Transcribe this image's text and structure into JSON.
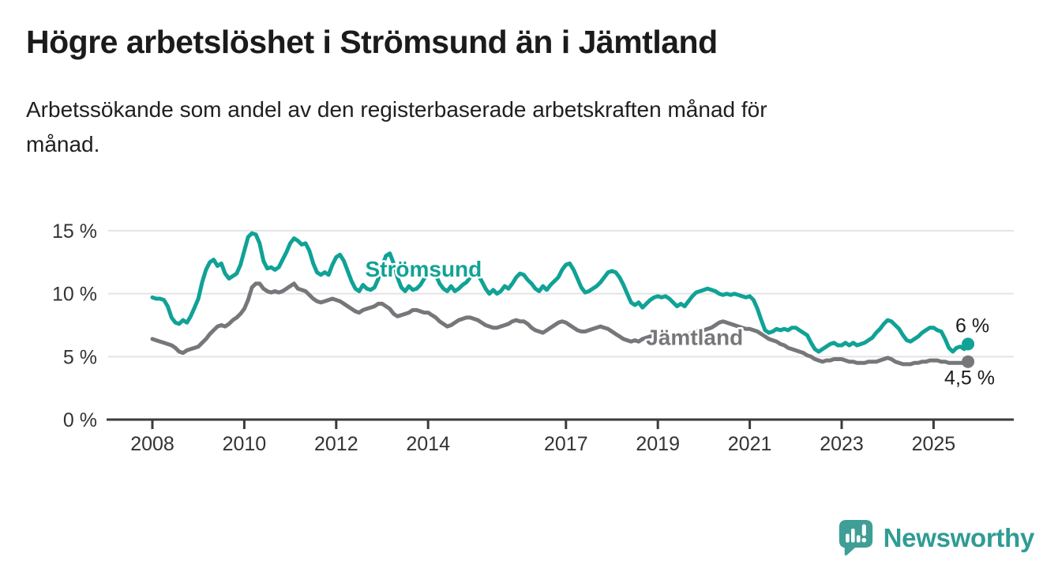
{
  "chart_data": {
    "type": "line",
    "title": "Högre arbetslöshet i Strömsund än i Jämtland",
    "subtitle": "Arbetssökande som andel av den registerbaserade arbetskraften månad för månad.",
    "subtitle_lines": [
      "Arbetssökande som andel av den registerbaserade arbetskraften månad för",
      "månad."
    ],
    "unit": "%",
    "grid": "horizontal",
    "legend_position": "inline",
    "x_start": 2008,
    "x_step": "month",
    "x_end_approx": 2025.75,
    "ylim": [
      0,
      15
    ],
    "ygrid_values": [
      5,
      10,
      15
    ],
    "yticks": [
      {
        "value": 15,
        "label": "15 %"
      },
      {
        "value": 10,
        "label": "10 %"
      },
      {
        "value": 5,
        "label": "5 %"
      },
      {
        "value": 0,
        "label": "0 %"
      }
    ],
    "xticks": [
      {
        "x": 2008,
        "label": "2008"
      },
      {
        "x": 2010,
        "label": "2010"
      },
      {
        "x": 2012,
        "label": "2012"
      },
      {
        "x": 2014,
        "label": "2014"
      },
      {
        "x": 2017,
        "label": "2017"
      },
      {
        "x": 2019,
        "label": "2019"
      },
      {
        "x": 2021,
        "label": "2021"
      },
      {
        "x": 2023,
        "label": "2023"
      },
      {
        "x": 2025,
        "label": "2025"
      }
    ],
    "series": [
      {
        "name": "Jämtland",
        "color": "#77777b",
        "end_label": "4,5 %",
        "label_at": {
          "x": 2019.8,
          "y": 6.55
        },
        "values": [
          6.4,
          6.3,
          6.2,
          6.1,
          6.0,
          5.9,
          5.7,
          5.4,
          5.3,
          5.5,
          5.6,
          5.7,
          5.8,
          6.1,
          6.4,
          6.8,
          7.1,
          7.4,
          7.5,
          7.4,
          7.6,
          7.9,
          8.1,
          8.4,
          8.8,
          9.5,
          10.5,
          10.8,
          10.8,
          10.4,
          10.2,
          10.1,
          10.2,
          10.1,
          10.2,
          10.4,
          10.6,
          10.8,
          10.4,
          10.3,
          10.2,
          9.9,
          9.6,
          9.4,
          9.3,
          9.4,
          9.5,
          9.6,
          9.5,
          9.4,
          9.2,
          9.0,
          8.8,
          8.6,
          8.5,
          8.7,
          8.8,
          8.9,
          9.0,
          9.2,
          9.2,
          9.0,
          8.8,
          8.4,
          8.2,
          8.3,
          8.4,
          8.5,
          8.7,
          8.7,
          8.6,
          8.5,
          8.5,
          8.3,
          8.1,
          7.8,
          7.6,
          7.4,
          7.5,
          7.7,
          7.9,
          8.0,
          8.1,
          8.1,
          8.0,
          7.9,
          7.7,
          7.5,
          7.4,
          7.3,
          7.3,
          7.4,
          7.5,
          7.6,
          7.8,
          7.9,
          7.8,
          7.8,
          7.6,
          7.3,
          7.1,
          7.0,
          6.9,
          7.1,
          7.3,
          7.5,
          7.7,
          7.8,
          7.7,
          7.5,
          7.3,
          7.1,
          7.0,
          7.0,
          7.1,
          7.2,
          7.3,
          7.4,
          7.3,
          7.2,
          7.0,
          6.8,
          6.6,
          6.4,
          6.3,
          6.2,
          6.3,
          6.2,
          6.4,
          6.5,
          6.6,
          6.7,
          6.8,
          6.7,
          6.6,
          6.5,
          6.4,
          6.5,
          6.6,
          6.7,
          6.8,
          6.9,
          7.0,
          7.1,
          7.1,
          7.2,
          7.3,
          7.5,
          7.7,
          7.8,
          7.7,
          7.6,
          7.5,
          7.4,
          7.3,
          7.2,
          7.2,
          7.1,
          7.0,
          6.8,
          6.6,
          6.4,
          6.3,
          6.2,
          6.0,
          5.9,
          5.7,
          5.6,
          5.5,
          5.4,
          5.3,
          5.1,
          5.0,
          4.8,
          4.7,
          4.6,
          4.7,
          4.7,
          4.8,
          4.8,
          4.8,
          4.7,
          4.6,
          4.6,
          4.5,
          4.5,
          4.5,
          4.6,
          4.6,
          4.6,
          4.7,
          4.8,
          4.9,
          4.8,
          4.6,
          4.5,
          4.4,
          4.4,
          4.4,
          4.5,
          4.5,
          4.6,
          4.6,
          4.7,
          4.7,
          4.7,
          4.6,
          4.6,
          4.5,
          4.5,
          4.5,
          4.5,
          4.5,
          4.6
        ]
      },
      {
        "name": "Strömsund",
        "color": "#10a296",
        "end_label": "6 %",
        "label_at": {
          "x": 2013.9,
          "y": 12.0
        },
        "values": [
          9.7,
          9.6,
          9.6,
          9.5,
          9.0,
          8.1,
          7.7,
          7.6,
          7.9,
          7.7,
          8.2,
          8.9,
          9.6,
          10.9,
          11.9,
          12.5,
          12.7,
          12.2,
          12.4,
          11.6,
          11.2,
          11.4,
          11.6,
          12.3,
          13.4,
          14.5,
          14.8,
          14.7,
          14.0,
          12.6,
          12.0,
          12.1,
          11.9,
          12.1,
          12.7,
          13.3,
          14.0,
          14.4,
          14.2,
          13.9,
          14.0,
          13.4,
          12.4,
          11.7,
          11.5,
          11.7,
          11.5,
          12.3,
          12.9,
          13.1,
          12.6,
          11.8,
          11.0,
          10.4,
          10.2,
          10.7,
          10.4,
          10.3,
          10.5,
          11.2,
          12.2,
          13.0,
          13.2,
          12.4,
          11.3,
          10.5,
          10.2,
          10.6,
          10.3,
          10.4,
          10.7,
          11.2,
          11.7,
          11.9,
          11.5,
          10.8,
          10.4,
          10.2,
          10.6,
          10.2,
          10.4,
          10.7,
          10.9,
          11.3,
          11.6,
          11.5,
          11.0,
          10.4,
          10.0,
          10.3,
          10.0,
          10.2,
          10.6,
          10.4,
          10.8,
          11.3,
          11.6,
          11.5,
          11.1,
          10.8,
          10.4,
          10.2,
          10.6,
          10.3,
          10.7,
          11.0,
          11.3,
          11.9,
          12.3,
          12.4,
          11.9,
          11.2,
          10.5,
          10.1,
          10.2,
          10.4,
          10.6,
          10.9,
          11.3,
          11.7,
          11.8,
          11.7,
          11.3,
          10.7,
          10.0,
          9.3,
          9.1,
          9.3,
          8.9,
          9.2,
          9.5,
          9.7,
          9.8,
          9.7,
          9.8,
          9.6,
          9.3,
          9.0,
          9.2,
          9.0,
          9.4,
          9.8,
          10.1,
          10.2,
          10.3,
          10.4,
          10.3,
          10.2,
          10.0,
          9.9,
          10.0,
          9.9,
          10.0,
          9.9,
          9.8,
          9.7,
          9.8,
          9.5,
          8.8,
          7.9,
          7.1,
          6.9,
          7.0,
          7.2,
          7.1,
          7.2,
          7.1,
          7.3,
          7.3,
          7.1,
          6.9,
          6.7,
          6.1,
          5.6,
          5.4,
          5.6,
          5.8,
          6.0,
          6.1,
          5.9,
          5.9,
          6.1,
          5.9,
          6.1,
          5.9,
          6.0,
          6.1,
          6.3,
          6.5,
          6.9,
          7.2,
          7.6,
          7.9,
          7.8,
          7.5,
          7.2,
          6.7,
          6.3,
          6.2,
          6.4,
          6.6,
          6.9,
          7.1,
          7.3,
          7.3,
          7.1,
          7.0,
          6.4,
          5.7,
          5.4,
          5.7,
          5.8,
          5.6,
          6.0
        ]
      }
    ],
    "colors": {
      "axis": "#3b3b3b",
      "grid": "#e4e4e4",
      "tick_text": "#333333",
      "label_halo": "#ffffff"
    }
  },
  "footer": {
    "brand": "Newsworthy",
    "brand_color": "#2f9c94",
    "logo_icon": "newsworthy-speech-bubble-bar-chart-icon",
    "logo_color": "#3f9e96"
  }
}
